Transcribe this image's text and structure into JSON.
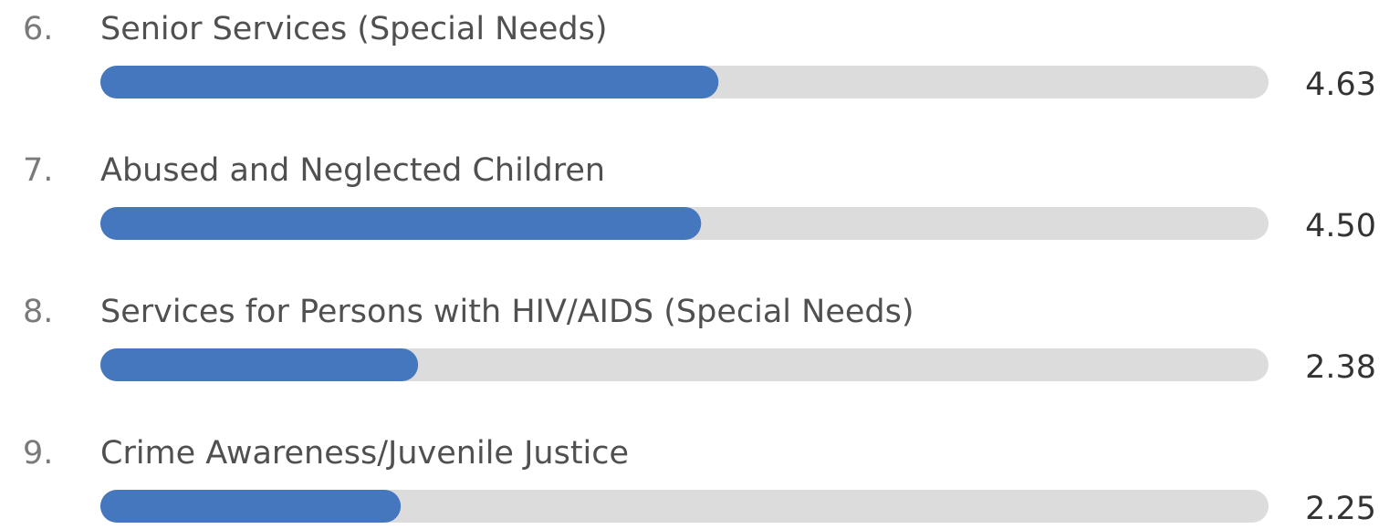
{
  "chart_data": {
    "type": "bar",
    "ranks": [
      "6.",
      "7.",
      "8.",
      "9."
    ],
    "categories": [
      "Senior Services (Special Needs)",
      "Abused and Neglected Children",
      "Services for Persons with HIV/AIDS (Special Needs)",
      "Crime Awareness/Juvenile Justice"
    ],
    "values": [
      4.63,
      4.5,
      2.38,
      2.25
    ],
    "value_labels": [
      "4.63",
      "4.50",
      "2.38",
      "2.25"
    ],
    "xlim": [
      0,
      8.75
    ],
    "color": "#4477bd",
    "track_color": "#dddcdd"
  }
}
